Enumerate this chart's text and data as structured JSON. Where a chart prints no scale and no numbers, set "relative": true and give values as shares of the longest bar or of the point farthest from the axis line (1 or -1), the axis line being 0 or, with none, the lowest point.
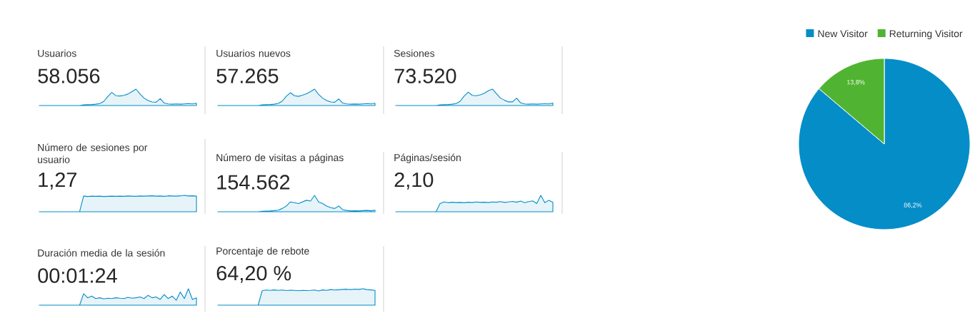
{
  "chart_data": [
    {
      "type": "area",
      "title": "Usuarios",
      "subtitle": "58.056",
      "color": "#058dc7",
      "relative": true,
      "categories": [
        null,
        null,
        null,
        null,
        null,
        null,
        null,
        null,
        null,
        null,
        null,
        null,
        null,
        null,
        null,
        null,
        null,
        null,
        null,
        null,
        null,
        null,
        null,
        null,
        null,
        null,
        null,
        null,
        null,
        null,
        null,
        null,
        null,
        null,
        null,
        null,
        null,
        null,
        null,
        null
      ],
      "values": [
        0,
        0,
        0,
        0,
        0,
        0,
        0,
        0,
        0,
        0,
        0,
        0.04,
        0.05,
        0.06,
        0.08,
        0.12,
        0.25,
        0.55,
        0.8,
        0.6,
        0.58,
        0.62,
        0.7,
        0.85,
        1,
        0.7,
        0.45,
        0.3,
        0.22,
        0.2,
        0.42,
        0.15,
        0.1,
        0.08,
        0.1,
        0.08,
        0.1,
        0.12,
        0.1,
        0.14
      ]
    },
    {
      "type": "area",
      "title": "Usuarios nuevos",
      "subtitle": "57.265",
      "color": "#058dc7",
      "relative": true,
      "categories": [
        null,
        null,
        null,
        null,
        null,
        null,
        null,
        null,
        null,
        null,
        null,
        null,
        null,
        null,
        null,
        null,
        null,
        null,
        null,
        null,
        null,
        null,
        null,
        null,
        null,
        null,
        null,
        null,
        null,
        null,
        null,
        null,
        null,
        null,
        null,
        null,
        null,
        null,
        null,
        null
      ],
      "values": [
        0,
        0,
        0,
        0,
        0,
        0,
        0,
        0,
        0,
        0,
        0,
        0.04,
        0.05,
        0.06,
        0.08,
        0.13,
        0.27,
        0.57,
        0.78,
        0.6,
        0.56,
        0.63,
        0.72,
        0.85,
        1,
        0.68,
        0.45,
        0.3,
        0.22,
        0.2,
        0.4,
        0.15,
        0.1,
        0.08,
        0.09,
        0.08,
        0.1,
        0.12,
        0.1,
        0.14
      ]
    },
    {
      "type": "area",
      "title": "Sesiones",
      "subtitle": "73.520",
      "color": "#058dc7",
      "relative": true,
      "categories": [
        null,
        null,
        null,
        null,
        null,
        null,
        null,
        null,
        null,
        null,
        null,
        null,
        null,
        null,
        null,
        null,
        null,
        null,
        null,
        null,
        null,
        null,
        null,
        null,
        null,
        null,
        null,
        null,
        null,
        null,
        null,
        null,
        null,
        null,
        null,
        null,
        null,
        null,
        null,
        null
      ],
      "values": [
        0,
        0,
        0,
        0,
        0,
        0,
        0,
        0,
        0,
        0,
        0,
        0.04,
        0.05,
        0.06,
        0.08,
        0.12,
        0.26,
        0.58,
        0.82,
        0.62,
        0.6,
        0.65,
        0.75,
        0.9,
        1,
        0.72,
        0.45,
        0.32,
        0.22,
        0.22,
        0.45,
        0.16,
        0.1,
        0.08,
        0.1,
        0.08,
        0.1,
        0.11,
        0.1,
        0.15
      ]
    },
    {
      "type": "area",
      "title": "Número de sesiones por usuario",
      "subtitle": "1,27",
      "color": "#058dc7",
      "relative": true,
      "categories": [
        null,
        null,
        null,
        null,
        null,
        null,
        null,
        null,
        null,
        null,
        null,
        null,
        null,
        null,
        null,
        null,
        null,
        null,
        null,
        null,
        null,
        null,
        null,
        null,
        null,
        null,
        null,
        null,
        null,
        null,
        null,
        null,
        null,
        null,
        null,
        null,
        null,
        null,
        null,
        null
      ],
      "values": [
        0,
        0,
        0,
        0,
        0,
        0,
        0,
        0,
        0,
        0,
        0,
        0.96,
        0.93,
        0.95,
        0.94,
        0.95,
        0.93,
        0.94,
        0.95,
        0.94,
        0.95,
        0.94,
        0.96,
        0.95,
        0.94,
        0.96,
        0.95,
        0.96,
        0.97,
        0.95,
        0.96,
        0.94,
        0.97,
        0.96,
        0.95,
        0.97,
        1,
        0.96,
        0.97,
        0.95
      ]
    },
    {
      "type": "area",
      "title": "Número de visitas a páginas",
      "subtitle": "154.562",
      "color": "#058dc7",
      "relative": true,
      "categories": [
        null,
        null,
        null,
        null,
        null,
        null,
        null,
        null,
        null,
        null,
        null,
        null,
        null,
        null,
        null,
        null,
        null,
        null,
        null,
        null,
        null,
        null,
        null,
        null,
        null,
        null,
        null,
        null,
        null,
        null,
        null,
        null,
        null,
        null,
        null,
        null,
        null,
        null,
        null,
        null
      ],
      "values": [
        0,
        0,
        0,
        0,
        0,
        0,
        0,
        0,
        0,
        0,
        0,
        0.03,
        0.04,
        0.05,
        0.07,
        0.1,
        0.2,
        0.35,
        0.6,
        0.55,
        0.5,
        0.6,
        0.7,
        0.65,
        1,
        0.6,
        0.5,
        0.35,
        0.25,
        0.2,
        0.35,
        0.12,
        0.08,
        0.05,
        0.06,
        0.05,
        0.07,
        0.08,
        0.06,
        0.1
      ]
    },
    {
      "type": "area",
      "title": "Páginas/sesión",
      "subtitle": "2,10",
      "color": "#058dc7",
      "relative": true,
      "categories": [
        null,
        null,
        null,
        null,
        null,
        null,
        null,
        null,
        null,
        null,
        null,
        null,
        null,
        null,
        null,
        null,
        null,
        null,
        null,
        null,
        null,
        null,
        null,
        null,
        null,
        null,
        null,
        null,
        null,
        null,
        null,
        null,
        null,
        null,
        null,
        null,
        null,
        null,
        null,
        null
      ],
      "values": [
        0,
        0,
        0,
        0,
        0,
        0,
        0,
        0,
        0,
        0,
        0,
        0.5,
        0.6,
        0.55,
        0.58,
        0.56,
        0.57,
        0.55,
        0.58,
        0.56,
        0.6,
        0.57,
        0.58,
        0.56,
        0.6,
        0.58,
        0.62,
        0.57,
        0.6,
        0.63,
        0.58,
        0.65,
        0.55,
        0.62,
        0.66,
        0.5,
        1,
        0.55,
        0.7,
        0.58
      ]
    },
    {
      "type": "area",
      "title": "Duración media de la sesión",
      "subtitle": "00:01:24",
      "color": "#058dc7",
      "relative": true,
      "categories": [
        null,
        null,
        null,
        null,
        null,
        null,
        null,
        null,
        null,
        null,
        null,
        null,
        null,
        null,
        null,
        null,
        null,
        null,
        null,
        null,
        null,
        null,
        null,
        null,
        null,
        null,
        null,
        null,
        null,
        null,
        null,
        null,
        null,
        null,
        null,
        null,
        null,
        null,
        null,
        null
      ],
      "values": [
        0,
        0,
        0,
        0,
        0,
        0,
        0,
        0,
        0,
        0,
        0,
        0.7,
        0.45,
        0.55,
        0.4,
        0.45,
        0.38,
        0.42,
        0.4,
        0.45,
        0.42,
        0.4,
        0.48,
        0.42,
        0.45,
        0.5,
        0.4,
        0.6,
        0.45,
        0.5,
        0.35,
        0.65,
        0.4,
        0.55,
        0.3,
        0.8,
        0.4,
        1,
        0.35,
        0.45
      ]
    },
    {
      "type": "area",
      "title": "Porcentaje de rebote",
      "subtitle": "64,20 %",
      "color": "#058dc7",
      "relative": true,
      "categories": [
        null,
        null,
        null,
        null,
        null,
        null,
        null,
        null,
        null,
        null,
        null,
        null,
        null,
        null,
        null,
        null,
        null,
        null,
        null,
        null,
        null,
        null,
        null,
        null,
        null,
        null,
        null,
        null,
        null,
        null,
        null,
        null,
        null,
        null,
        null,
        null,
        null,
        null,
        null,
        null
      ],
      "values": [
        0,
        0,
        0,
        0,
        0,
        0,
        0,
        0,
        0,
        0,
        0,
        0.88,
        0.92,
        0.9,
        0.93,
        0.9,
        0.92,
        0.89,
        0.91,
        0.9,
        0.88,
        0.9,
        0.89,
        0.9,
        0.92,
        0.87,
        0.93,
        0.9,
        0.95,
        0.92,
        0.94,
        0.96,
        0.97,
        0.95,
        0.98,
        0.96,
        1,
        0.95,
        0.93,
        0.9
      ]
    },
    {
      "type": "pie",
      "categories": [
        "New Visitor",
        "Returning Visitor"
      ],
      "values": [
        86.2,
        13.8
      ],
      "colors": [
        "#058dc7",
        "#50b432"
      ],
      "value_labels": [
        "86,2%",
        "13,8%"
      ],
      "legend": "top"
    }
  ]
}
